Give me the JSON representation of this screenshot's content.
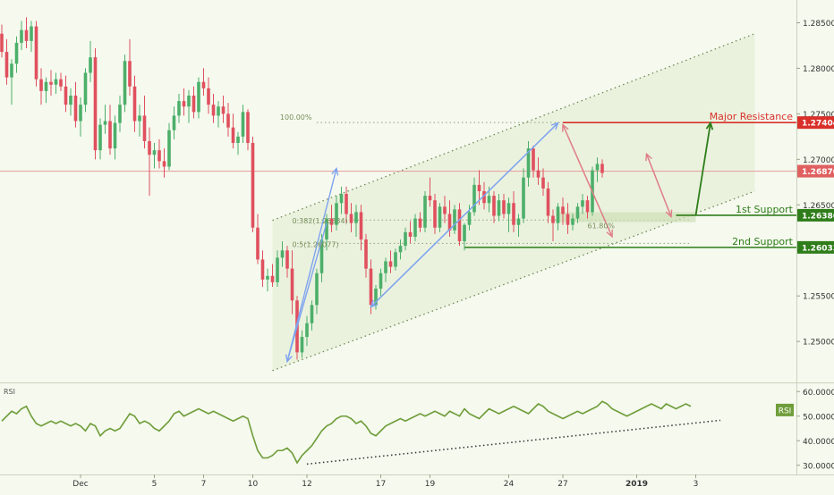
{
  "chart_data": {
    "type": "candlestick",
    "instrument_note": "",
    "colors": {
      "background": "#f5f9ee",
      "up": "#4caf6a",
      "down": "#e0505e",
      "channel_fill": "#e6efd8",
      "channel_line": "#6e8a55",
      "resistance": "#d9302a",
      "support": "#2f7d1a",
      "rsi_line": "#6f9d3a",
      "projection": "#2f7d1a",
      "measure_blue": "#7fa3ee",
      "measure_red": "#e08089"
    },
    "price_axis": {
      "ylim": [
        1.2455,
        1.2875
      ],
      "ticks": [
        "1.28500",
        "1.28000",
        "1.27500",
        "1.27000",
        "1.26500",
        "1.26000",
        "1.25500",
        "1.25000"
      ],
      "tick_values": [
        1.285,
        1.28,
        1.275,
        1.27,
        1.265,
        1.26,
        1.255,
        1.25
      ]
    },
    "time_axis": {
      "labels": [
        "Dec",
        "5",
        "7",
        "10",
        "12",
        "17",
        "19",
        "24",
        "27",
        "2019",
        "3"
      ],
      "label_index": [
        16,
        31,
        41,
        51,
        62,
        77,
        87,
        103,
        114,
        129,
        141
      ],
      "bold": [
        "2019"
      ]
    },
    "levels": [
      {
        "name": "Major Resistance",
        "label": "Major Resistance",
        "value": "1.27404",
        "price": 1.27404,
        "kind": "resistance"
      },
      {
        "name": "current",
        "label": "",
        "value": "1.26870",
        "price": 1.2687,
        "kind": "current"
      },
      {
        "name": "1st Support",
        "label": "1st Support",
        "value": "1.26386",
        "price": 1.26386,
        "kind": "support"
      },
      {
        "name": "2nd Support",
        "label": "2nd Support",
        "value": "1.26033",
        "price": 1.26033,
        "kind": "support"
      }
    ],
    "fib_labels": [
      {
        "text": "100.00%",
        "price": 1.27404
      },
      {
        "text": "0.382(1.26334)",
        "price": 1.26334
      },
      {
        "text": "0.5(1.26077)",
        "price": 1.26077
      },
      {
        "text": "61.80%",
        "price": 1.2632
      }
    ],
    "channel": {
      "lower": [
        {
          "i": 55,
          "p": 1.2468
        },
        {
          "i": 153,
          "p": 1.2665
        }
      ],
      "upper": [
        {
          "i": 55,
          "p": 1.2633
        },
        {
          "i": 153,
          "p": 1.2838
        }
      ]
    },
    "projection": {
      "from": {
        "i": 141,
        "p": 1.26386
      },
      "to": {
        "i": 144,
        "p": 1.274
      }
    },
    "candles": [
      [
        1.2838,
        1.2848,
        1.2812,
        1.2818
      ],
      [
        1.2818,
        1.2832,
        1.2782,
        1.279
      ],
      [
        1.279,
        1.281,
        1.276,
        1.2805
      ],
      [
        1.2805,
        1.2835,
        1.2795,
        1.2828
      ],
      [
        1.2828,
        1.2852,
        1.282,
        1.2842
      ],
      [
        1.2842,
        1.2856,
        1.2822,
        1.283
      ],
      [
        1.283,
        1.2852,
        1.2818,
        1.2846
      ],
      [
        1.2846,
        1.2852,
        1.278,
        1.2788
      ],
      [
        1.2788,
        1.28,
        1.276,
        1.2775
      ],
      [
        1.2775,
        1.279,
        1.2762,
        1.2785
      ],
      [
        1.2785,
        1.2798,
        1.277,
        1.2782
      ],
      [
        1.2782,
        1.2795,
        1.2772,
        1.2788
      ],
      [
        1.2788,
        1.2795,
        1.2775,
        1.278
      ],
      [
        1.278,
        1.2792,
        1.2752,
        1.276
      ],
      [
        1.276,
        1.2778,
        1.2748,
        1.277
      ],
      [
        1.277,
        1.2785,
        1.2735,
        1.2742
      ],
      [
        1.2742,
        1.2768,
        1.2725,
        1.276
      ],
      [
        1.276,
        1.28,
        1.2752,
        1.2795
      ],
      [
        1.2795,
        1.283,
        1.2785,
        1.2812
      ],
      [
        1.2812,
        1.2822,
        1.27,
        1.271
      ],
      [
        1.271,
        1.2745,
        1.27,
        1.2738
      ],
      [
        1.2738,
        1.276,
        1.2728,
        1.2742
      ],
      [
        1.2742,
        1.276,
        1.2705,
        1.2712
      ],
      [
        1.2712,
        1.2748,
        1.27,
        1.274
      ],
      [
        1.274,
        1.277,
        1.273,
        1.276
      ],
      [
        1.276,
        1.2815,
        1.2752,
        1.2808
      ],
      [
        1.2808,
        1.2832,
        1.277,
        1.278
      ],
      [
        1.278,
        1.2792,
        1.273,
        1.2742
      ],
      [
        1.2742,
        1.276,
        1.2725,
        1.2748
      ],
      [
        1.2748,
        1.277,
        1.2712,
        1.272
      ],
      [
        1.272,
        1.2735,
        1.266,
        1.2705
      ],
      [
        1.2705,
        1.2718,
        1.269,
        1.271
      ],
      [
        1.271,
        1.2722,
        1.269,
        1.2698
      ],
      [
        1.2698,
        1.2712,
        1.268,
        1.2692
      ],
      [
        1.2692,
        1.274,
        1.2688,
        1.2732
      ],
      [
        1.2732,
        1.2758,
        1.2722,
        1.2748
      ],
      [
        1.2748,
        1.2772,
        1.274,
        1.2764
      ],
      [
        1.2764,
        1.2778,
        1.2748,
        1.2758
      ],
      [
        1.2758,
        1.2776,
        1.274,
        1.277
      ],
      [
        1.277,
        1.278,
        1.2745,
        1.2752
      ],
      [
        1.2752,
        1.279,
        1.2745,
        1.2785
      ],
      [
        1.2785,
        1.28,
        1.277,
        1.2778
      ],
      [
        1.2778,
        1.279,
        1.275,
        1.276
      ],
      [
        1.276,
        1.2772,
        1.274,
        1.2748
      ],
      [
        1.2748,
        1.2764,
        1.2735,
        1.2758
      ],
      [
        1.2758,
        1.277,
        1.274,
        1.275
      ],
      [
        1.275,
        1.2762,
        1.2725,
        1.2735
      ],
      [
        1.2735,
        1.275,
        1.2712,
        1.2718
      ],
      [
        1.2718,
        1.273,
        1.2705,
        1.2725
      ],
      [
        1.2725,
        1.276,
        1.2718,
        1.2752
      ],
      [
        1.2752,
        1.2755,
        1.271,
        1.2718
      ],
      [
        1.2718,
        1.2725,
        1.262,
        1.2625
      ],
      [
        1.2625,
        1.264,
        1.2585,
        1.259
      ],
      [
        1.259,
        1.26,
        1.256,
        1.2568
      ],
      [
        1.2568,
        1.258,
        1.2555,
        1.2572
      ],
      [
        1.2572,
        1.2585,
        1.256,
        1.2565
      ],
      [
        1.2565,
        1.26,
        1.256,
        1.2592
      ],
      [
        1.2592,
        1.261,
        1.2582,
        1.26
      ],
      [
        1.26,
        1.2605,
        1.257,
        1.258
      ],
      [
        1.258,
        1.26,
        1.253,
        1.2545
      ],
      [
        1.2545,
        1.255,
        1.248,
        1.2488
      ],
      [
        1.2488,
        1.2512,
        1.2482,
        1.2505
      ],
      [
        1.2505,
        1.2528,
        1.2495,
        1.252
      ],
      [
        1.252,
        1.2545,
        1.2512,
        1.254
      ],
      [
        1.254,
        1.258,
        1.253,
        1.2575
      ],
      [
        1.2575,
        1.2618,
        1.2565,
        1.2612
      ],
      [
        1.2612,
        1.264,
        1.26,
        1.2635
      ],
      [
        1.2635,
        1.265,
        1.262,
        1.2628
      ],
      [
        1.2628,
        1.266,
        1.2622,
        1.2652
      ],
      [
        1.2652,
        1.267,
        1.264,
        1.2662
      ],
      [
        1.2662,
        1.267,
        1.263,
        1.264
      ],
      [
        1.264,
        1.2652,
        1.262,
        1.263
      ],
      [
        1.263,
        1.265,
        1.2615,
        1.2642
      ],
      [
        1.2642,
        1.265,
        1.26,
        1.2612
      ],
      [
        1.2612,
        1.2618,
        1.257,
        1.258
      ],
      [
        1.258,
        1.259,
        1.253,
        1.254
      ],
      [
        1.254,
        1.2562,
        1.2535,
        1.2558
      ],
      [
        1.2558,
        1.258,
        1.255,
        1.2575
      ],
      [
        1.2575,
        1.2592,
        1.2565,
        1.2588
      ],
      [
        1.2588,
        1.26,
        1.2575,
        1.2582
      ],
      [
        1.2582,
        1.2602,
        1.2578,
        1.2598
      ],
      [
        1.2598,
        1.2612,
        1.259,
        1.2605
      ],
      [
        1.2605,
        1.2625,
        1.26,
        1.262
      ],
      [
        1.262,
        1.2632,
        1.2608,
        1.2615
      ],
      [
        1.2615,
        1.264,
        1.261,
        1.2635
      ],
      [
        1.2635,
        1.2642,
        1.262,
        1.2625
      ],
      [
        1.2625,
        1.2665,
        1.262,
        1.266
      ],
      [
        1.266,
        1.268,
        1.2648,
        1.2655
      ],
      [
        1.2655,
        1.2662,
        1.2618,
        1.2625
      ],
      [
        1.2625,
        1.2652,
        1.262,
        1.2648
      ],
      [
        1.2648,
        1.266,
        1.263,
        1.264
      ],
      [
        1.264,
        1.2655,
        1.2615,
        1.2622
      ],
      [
        1.2622,
        1.265,
        1.2618,
        1.2645
      ],
      [
        1.2645,
        1.2652,
        1.2605,
        1.261
      ],
      [
        1.261,
        1.263,
        1.26,
        1.2628
      ],
      [
        1.2628,
        1.265,
        1.2622,
        1.2642
      ],
      [
        1.2642,
        1.268,
        1.2638,
        1.2672
      ],
      [
        1.2672,
        1.2688,
        1.265,
        1.2665
      ],
      [
        1.2665,
        1.2675,
        1.2645,
        1.2652
      ],
      [
        1.2652,
        1.267,
        1.2642,
        1.266
      ],
      [
        1.266,
        1.2665,
        1.263,
        1.2638
      ],
      [
        1.2638,
        1.2662,
        1.2632,
        1.2655
      ],
      [
        1.2655,
        1.2662,
        1.2635,
        1.264
      ],
      [
        1.264,
        1.2658,
        1.262,
        1.2652
      ],
      [
        1.2652,
        1.2665,
        1.262,
        1.2628
      ],
      [
        1.2628,
        1.264,
        1.2615,
        1.2635
      ],
      [
        1.2635,
        1.269,
        1.263,
        1.268
      ],
      [
        1.268,
        1.272,
        1.267,
        1.2712
      ],
      [
        1.2712,
        1.2715,
        1.268,
        1.2688
      ],
      [
        1.2688,
        1.2702,
        1.2672,
        1.268
      ],
      [
        1.268,
        1.269,
        1.266,
        1.2668
      ],
      [
        1.2668,
        1.2675,
        1.263,
        1.2638
      ],
      [
        1.2638,
        1.2645,
        1.261,
        1.263
      ],
      [
        1.263,
        1.2652,
        1.2622,
        1.2648
      ],
      [
        1.2648,
        1.2658,
        1.2628,
        1.264
      ],
      [
        1.264,
        1.2652,
        1.2618,
        1.2628
      ],
      [
        1.2628,
        1.264,
        1.2622,
        1.2635
      ],
      [
        1.2635,
        1.2652,
        1.263,
        1.2648
      ],
      [
        1.2648,
        1.2662,
        1.264,
        1.2655
      ],
      [
        1.2655,
        1.266,
        1.2635,
        1.2642
      ],
      [
        1.2642,
        1.2692,
        1.2638,
        1.2688
      ],
      [
        1.2688,
        1.2702,
        1.2675,
        1.2695
      ],
      [
        1.2695,
        1.27,
        1.268,
        1.2685
      ]
    ],
    "rsi": {
      "label": "RSI",
      "badge": "RSI",
      "ylim": [
        27,
        63
      ],
      "ticks": [
        "60.0000",
        "50.0000",
        "40.0000",
        "30.0000"
      ],
      "tick_values": [
        60,
        50,
        40,
        30
      ],
      "values": [
        48,
        50,
        52,
        51,
        53,
        54,
        50,
        47,
        46,
        47,
        48,
        47,
        48,
        47,
        46,
        47,
        46,
        44,
        47,
        46,
        42,
        44,
        45,
        44,
        45,
        48,
        51,
        50,
        47,
        48,
        47,
        45,
        44,
        46,
        48,
        51,
        52,
        50,
        51,
        52,
        53,
        52,
        51,
        52,
        51,
        50,
        49,
        48,
        49,
        50,
        49,
        42,
        36,
        33,
        33,
        34,
        36,
        36,
        37,
        35,
        31,
        34,
        36,
        38,
        41,
        44,
        46,
        47,
        49,
        50,
        50,
        49,
        47,
        48,
        46,
        43,
        42,
        44,
        46,
        47,
        48,
        49,
        48,
        49,
        50,
        51,
        50,
        51,
        52,
        51,
        50,
        52,
        51,
        50,
        53,
        51,
        50,
        49,
        51,
        53,
        52,
        51,
        52,
        53,
        54,
        53,
        52,
        51,
        53,
        55,
        54,
        52,
        51,
        50,
        49,
        50,
        51,
        52,
        51,
        52,
        53,
        54,
        56,
        55,
        53,
        52,
        51,
        50,
        51,
        52,
        53,
        54,
        55,
        54,
        53,
        55,
        54,
        53,
        54,
        55,
        54
      ],
      "trendline": [
        {
          "i": 62,
          "v": 30.5
        },
        {
          "i": 146,
          "v": 48.3
        }
      ]
    }
  }
}
